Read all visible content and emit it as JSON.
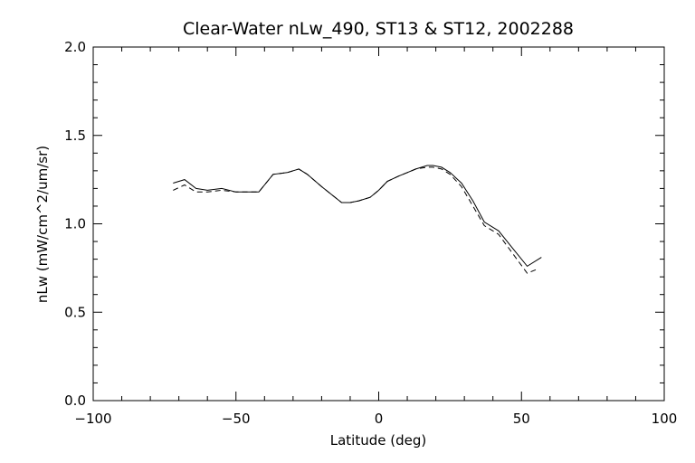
{
  "chart_data": {
    "type": "line",
    "title": "Clear-Water nLw_490, ST13 & ST12, 2002288",
    "xlabel": "Latitude (deg)",
    "ylabel": "nLw (mW/cm^2/um/sr)",
    "xlim": [
      -100,
      100
    ],
    "ylim": [
      0.0,
      2.0
    ],
    "x_ticks": [
      -100,
      -50,
      0,
      50,
      100
    ],
    "x_tick_labels": [
      "-100",
      "-50",
      "0",
      "50",
      "100"
    ],
    "y_ticks": [
      0.0,
      0.5,
      1.0,
      1.5,
      2.0
    ],
    "y_tick_labels": [
      "0.0",
      "0.5",
      "1.0",
      "1.5",
      "2.0"
    ],
    "x_minor_step": 10,
    "y_minor_step": 0.1,
    "grid": false,
    "series": [
      {
        "style": "solid",
        "color": "#000000",
        "x": [
          -72,
          -68,
          -64,
          -60,
          -55,
          -50,
          -45,
          -42,
          -37,
          -32,
          -28,
          -25,
          -20,
          -13,
          -10,
          -7,
          -3,
          0,
          3,
          7,
          10,
          13,
          17,
          19,
          22,
          25,
          29,
          33,
          37,
          42,
          47,
          52,
          57
        ],
        "y": [
          1.23,
          1.25,
          1.2,
          1.19,
          1.2,
          1.18,
          1.18,
          1.18,
          1.28,
          1.29,
          1.31,
          1.28,
          1.21,
          1.12,
          1.12,
          1.13,
          1.15,
          1.19,
          1.24,
          1.27,
          1.29,
          1.31,
          1.33,
          1.33,
          1.32,
          1.29,
          1.23,
          1.13,
          1.01,
          0.96,
          0.86,
          0.76,
          0.81
        ]
      },
      {
        "style": "dashed",
        "color": "#000000",
        "x": [
          -72,
          -68,
          -64,
          -60,
          -55,
          -50,
          -45,
          -42,
          -37,
          -32,
          -28,
          -25,
          -20,
          -13,
          -10,
          -7,
          -3,
          0,
          3,
          7,
          10,
          13,
          17,
          19,
          22,
          25,
          29,
          33,
          37,
          42,
          47,
          52,
          55
        ],
        "y": [
          1.19,
          1.22,
          1.18,
          1.18,
          1.19,
          1.18,
          1.18,
          1.18,
          1.28,
          1.29,
          1.31,
          1.28,
          1.21,
          1.12,
          1.12,
          1.13,
          1.15,
          1.19,
          1.24,
          1.27,
          1.29,
          1.31,
          1.32,
          1.32,
          1.31,
          1.28,
          1.21,
          1.1,
          0.99,
          0.94,
          0.83,
          0.72,
          0.74
        ]
      }
    ]
  }
}
